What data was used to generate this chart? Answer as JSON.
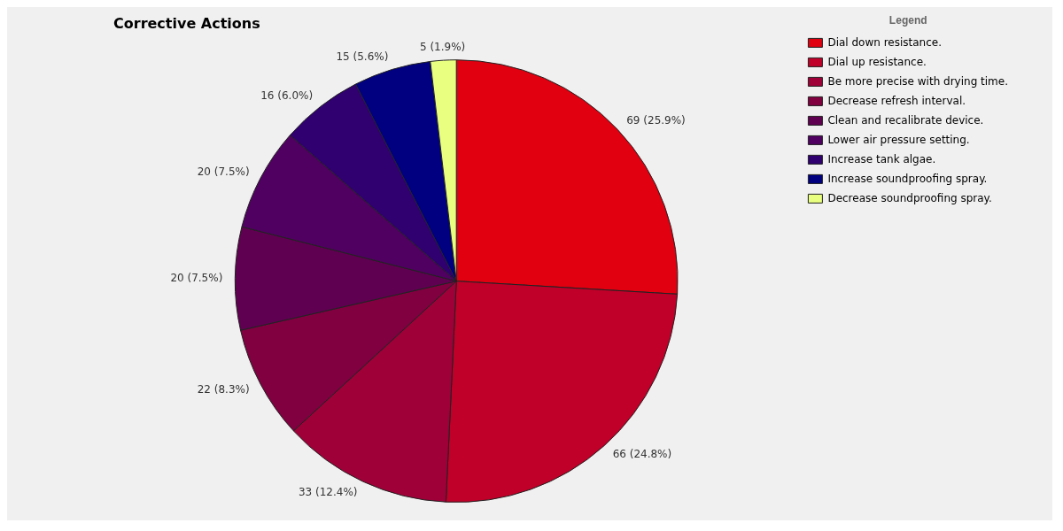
{
  "chart_data": {
    "type": "pie",
    "title": "Corrective Actions",
    "legend_title": "Legend",
    "legend": "right",
    "categories": [
      "Dial down resistance.",
      "Dial up resistance.",
      "Be more precise with drying time.",
      "Decrease refresh interval.",
      "Clean and recalibrate device.",
      "Lower air pressure setting.",
      "Increase tank algae.",
      "Increase soundproofing spray.",
      "Decrease soundproofing spray."
    ],
    "values": [
      69,
      66,
      33,
      22,
      20,
      20,
      16,
      15,
      5
    ],
    "value_labels": [
      "69 (25.9%)",
      "66 (24.8%)",
      "33 (12.4%)",
      "22 (8.3%)",
      "20 (7.5%)",
      "20 (7.5%)",
      "16 (6.0%)",
      "15 (5.6%)",
      "5 (1.9%)"
    ],
    "colors": [
      "#e00010",
      "#c00028",
      "#a00038",
      "#800040",
      "#600050",
      "#500060",
      "#300070",
      "#000080",
      "#e8ff80"
    ]
  }
}
